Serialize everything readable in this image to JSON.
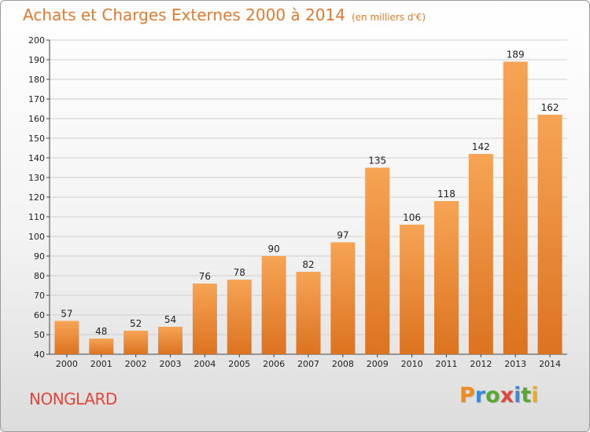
{
  "header": {
    "title": "Achats et Charges Externes 2000 à 2014",
    "unit": "(en milliers d'€)"
  },
  "footer": {
    "commune": "NONGLARD",
    "logo": "Proxiti"
  },
  "colors": {
    "title": "#e07a2e",
    "commune": "#e0463a",
    "bar_light": "#f6a455",
    "bar_dark": "#dc7320",
    "logo_letters": [
      "#f08a1c",
      "#3a8ad8",
      "#58a832",
      "#e0463a",
      "#3a8ad8",
      "#58a832",
      "#f0a81c"
    ]
  },
  "chart_data": {
    "type": "bar",
    "categories": [
      "2000",
      "2001",
      "2002",
      "2003",
      "2004",
      "2005",
      "2006",
      "2007",
      "2008",
      "2009",
      "2010",
      "2011",
      "2012",
      "2013",
      "2014"
    ],
    "values": [
      57,
      48,
      52,
      54,
      76,
      78,
      90,
      82,
      97,
      135,
      106,
      118,
      142,
      189,
      162
    ],
    "ylim": [
      40,
      200
    ],
    "yticks": [
      40,
      50,
      60,
      70,
      80,
      90,
      100,
      110,
      120,
      130,
      140,
      150,
      160,
      170,
      180,
      190,
      200
    ],
    "grid": "horizontal",
    "data_labels": true
  }
}
